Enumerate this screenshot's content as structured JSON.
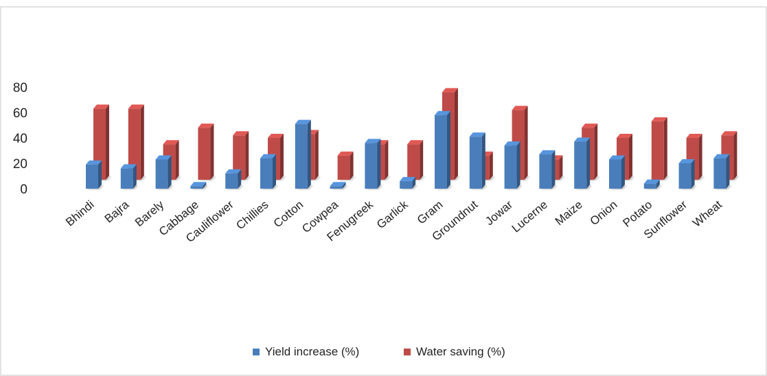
{
  "chart_data": {
    "type": "bar",
    "title": "",
    "xlabel": "",
    "ylabel": "",
    "ylim": [
      0,
      80
    ],
    "yticks": [
      0,
      20,
      40,
      60,
      80
    ],
    "grid": false,
    "legend_position": "bottom",
    "categories": [
      "Bhindi",
      "Bajra",
      "Barely",
      "Cabbage",
      "Cauliflower",
      "Chillies",
      "Cotton",
      "Cowpea",
      "Fenugreek",
      "Garlick",
      "Gram",
      "Groundnut",
      "Jowar",
      "Lucerne",
      "Maize",
      "Onion",
      "Potato",
      "Sunflower",
      "Wheat"
    ],
    "series": [
      {
        "name": "Yield increase (%)",
        "color": "#4a7ebb",
        "values": [
          19,
          16,
          23,
          2,
          12,
          24,
          51,
          2,
          36,
          6,
          58,
          41,
          34,
          27,
          37,
          23,
          4,
          20,
          24
        ]
      },
      {
        "name": "Water saving (%)",
        "color": "#be4b48",
        "values": [
          56,
          56,
          28,
          41,
          35,
          33,
          36,
          19,
          28,
          28,
          69,
          19,
          55,
          16,
          41,
          33,
          46,
          33,
          35
        ]
      }
    ]
  }
}
